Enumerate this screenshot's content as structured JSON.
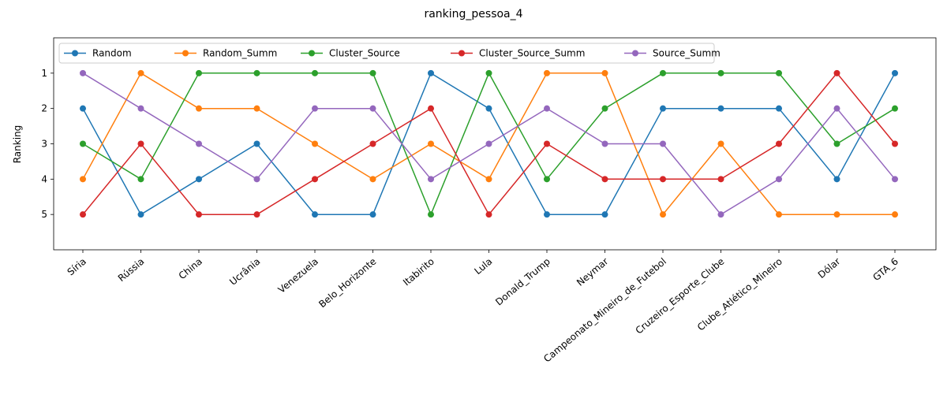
{
  "chart_data": {
    "type": "line",
    "title": "ranking_pessoa_4",
    "xlabel": "",
    "ylabel": "Ranking",
    "y_inverted": true,
    "ylim": [
      6,
      0
    ],
    "yticks": [
      1,
      2,
      3,
      4,
      5
    ],
    "grid": false,
    "legend_position": "top-left",
    "legend_columns": 5,
    "categories": [
      "Síria",
      "Rússia",
      "China",
      "Ucrânia",
      "Venezuela",
      "Belo_Horizonte",
      "Itabirito",
      "Lula",
      "Donald_Trump",
      "Neymar",
      "Campeonato_Mineiro_de_Futebol",
      "Cruzeiro_Esporte_Clube",
      "Clube_Atlético_Mineiro",
      "Dólar",
      "GTA_6"
    ],
    "series": [
      {
        "name": "Random",
        "color": "#1f77b4",
        "values": [
          2,
          5,
          4,
          3,
          5,
          5,
          1,
          2,
          5,
          5,
          2,
          2,
          2,
          4,
          1
        ]
      },
      {
        "name": "Random_Summ",
        "color": "#ff7f0e",
        "values": [
          4,
          1,
          2,
          2,
          3,
          4,
          3,
          4,
          1,
          1,
          5,
          3,
          5,
          5,
          5
        ]
      },
      {
        "name": "Cluster_Source",
        "color": "#2ca02c",
        "values": [
          3,
          4,
          1,
          1,
          1,
          1,
          5,
          1,
          4,
          2,
          1,
          1,
          1,
          3,
          2
        ]
      },
      {
        "name": "Cluster_Source_Summ",
        "color": "#d62728",
        "values": [
          5,
          3,
          5,
          5,
          4,
          3,
          2,
          5,
          3,
          4,
          4,
          4,
          3,
          1,
          3
        ]
      },
      {
        "name": "Source_Summ",
        "color": "#9467bd",
        "values": [
          1,
          2,
          3,
          4,
          2,
          2,
          4,
          3,
          2,
          3,
          3,
          5,
          4,
          2,
          4
        ]
      }
    ]
  }
}
